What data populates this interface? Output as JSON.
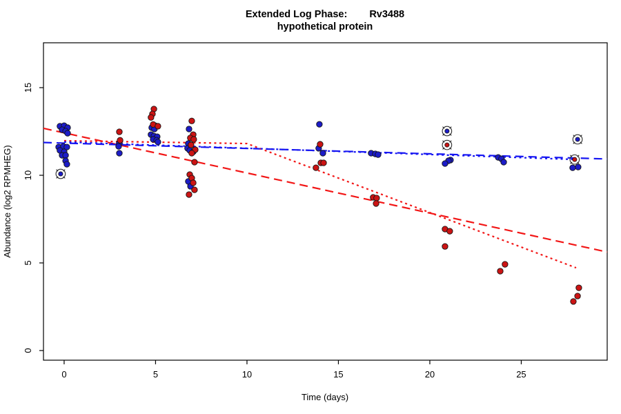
{
  "figure": {
    "title_part1": "Extended Log Phase:",
    "title_part2": "Rv3488",
    "subtitle": "hypothetical protein",
    "xlabel": "Time (days)",
    "ylabel": "Abundance (log2 RPMHEG)"
  },
  "chart_data": {
    "type": "scatter",
    "title": "Extended Log Phase: Rv3488 — hypothetical protein",
    "xlabel": "Time (days)",
    "ylabel": "Abundance (log2 RPMHEG)",
    "legend": "none",
    "grid": false,
    "axes": {
      "x_ticks": [
        0,
        5,
        10,
        15,
        20,
        25
      ],
      "y_ticks": [
        0,
        5,
        10,
        15
      ],
      "xlim": [
        -1.13,
        29.7
      ],
      "ylim": [
        -0.55,
        17.56
      ]
    },
    "series": [
      {
        "name": "blue",
        "color": "#1c1cc8",
        "marker": "filled-circle",
        "points": [
          [
            -0.23,
            12.8
          ],
          [
            0.0,
            12.83
          ],
          [
            0.19,
            12.72
          ],
          [
            -0.11,
            12.6
          ],
          [
            0.08,
            12.52
          ],
          [
            0.19,
            12.4
          ],
          [
            -0.3,
            11.61
          ],
          [
            -0.04,
            11.65
          ],
          [
            0.15,
            11.61
          ],
          [
            -0.23,
            11.42
          ],
          [
            0.0,
            11.34
          ],
          [
            -0.11,
            11.14
          ],
          [
            0.08,
            11.14
          ],
          [
            0.08,
            10.83
          ],
          [
            0.15,
            10.63
          ],
          [
            3.02,
            11.85
          ],
          [
            2.98,
            11.65
          ],
          [
            3.02,
            11.26
          ],
          [
            4.98,
            12.83
          ],
          [
            4.79,
            12.72
          ],
          [
            4.94,
            12.64
          ],
          [
            4.75,
            12.32
          ],
          [
            4.91,
            12.24
          ],
          [
            5.09,
            12.2
          ],
          [
            4.87,
            12.05
          ],
          [
            5.06,
            12.0
          ],
          [
            5.13,
            11.9
          ],
          [
            6.83,
            12.64
          ],
          [
            6.79,
            11.81
          ],
          [
            6.75,
            11.54
          ],
          [
            6.87,
            11.42
          ],
          [
            7.06,
            11.34
          ],
          [
            6.79,
            9.65
          ],
          [
            6.91,
            9.37
          ],
          [
            13.96,
            12.91
          ],
          [
            13.92,
            11.54
          ],
          [
            14.15,
            11.26
          ],
          [
            16.79,
            11.26
          ],
          [
            17.02,
            11.22
          ],
          [
            17.17,
            11.18
          ],
          [
            21.13,
            10.87
          ],
          [
            21.02,
            10.83
          ],
          [
            20.83,
            10.67
          ],
          [
            23.74,
            11.02
          ],
          [
            23.92,
            10.94
          ],
          [
            24.04,
            10.75
          ],
          [
            28.11,
            10.47
          ],
          [
            27.81,
            10.43
          ]
        ]
      },
      {
        "name": "red",
        "color": "#cc1414",
        "marker": "filled-circle",
        "points": [
          [
            3.02,
            12.48
          ],
          [
            3.06,
            12.0
          ],
          [
            4.91,
            13.78
          ],
          [
            4.83,
            13.5
          ],
          [
            4.75,
            13.3
          ],
          [
            4.87,
            12.9
          ],
          [
            5.13,
            12.8
          ],
          [
            6.98,
            13.1
          ],
          [
            7.06,
            12.32
          ],
          [
            6.9,
            12.13
          ],
          [
            7.09,
            12.05
          ],
          [
            6.94,
            11.73
          ],
          [
            7.17,
            11.46
          ],
          [
            6.98,
            11.26
          ],
          [
            7.13,
            10.75
          ],
          [
            6.87,
            10.04
          ],
          [
            6.98,
            9.84
          ],
          [
            7.06,
            9.57
          ],
          [
            7.13,
            9.17
          ],
          [
            6.83,
            8.9
          ],
          [
            14.0,
            11.77
          ],
          [
            14.04,
            10.71
          ],
          [
            14.19,
            10.71
          ],
          [
            13.77,
            10.43
          ],
          [
            16.9,
            8.74
          ],
          [
            17.09,
            8.7
          ],
          [
            17.06,
            8.39
          ],
          [
            20.83,
            6.93
          ],
          [
            21.09,
            6.81
          ],
          [
            20.83,
            5.94
          ],
          [
            24.11,
            4.92
          ],
          [
            23.85,
            4.53
          ],
          [
            28.15,
            3.58
          ],
          [
            28.08,
            3.11
          ],
          [
            27.85,
            2.8
          ]
        ]
      }
    ],
    "circled_points": [
      {
        "t": -0.19,
        "v": 10.08,
        "series": "blue"
      },
      {
        "t": 20.94,
        "v": 12.52,
        "series": "blue"
      },
      {
        "t": 20.94,
        "v": 11.73,
        "series": "red"
      },
      {
        "t": 28.08,
        "v": 12.05,
        "series": "blue"
      },
      {
        "t": 27.92,
        "v": 10.9,
        "series": "red"
      }
    ],
    "fit_lines": [
      {
        "name": "red-dashed",
        "style": "dashed",
        "color": "#f21616",
        "pts": [
          [
            -1.13,
            12.68
          ],
          [
            29.7,
            5.62
          ]
        ]
      },
      {
        "name": "blue-dashed",
        "style": "dashed",
        "color": "#1616f2",
        "pts": [
          [
            -1.13,
            11.87
          ],
          [
            29.7,
            10.93
          ]
        ]
      },
      {
        "name": "red-dotted",
        "style": "dotted",
        "color": "#f21616",
        "pts": [
          [
            0,
            11.97
          ],
          [
            10,
            11.81
          ],
          [
            28,
            4.72
          ]
        ]
      },
      {
        "name": "blue-dotted",
        "style": "dotted",
        "color": "#1616f2",
        "pts": [
          [
            0,
            11.9
          ],
          [
            28,
            10.9
          ]
        ]
      }
    ]
  }
}
